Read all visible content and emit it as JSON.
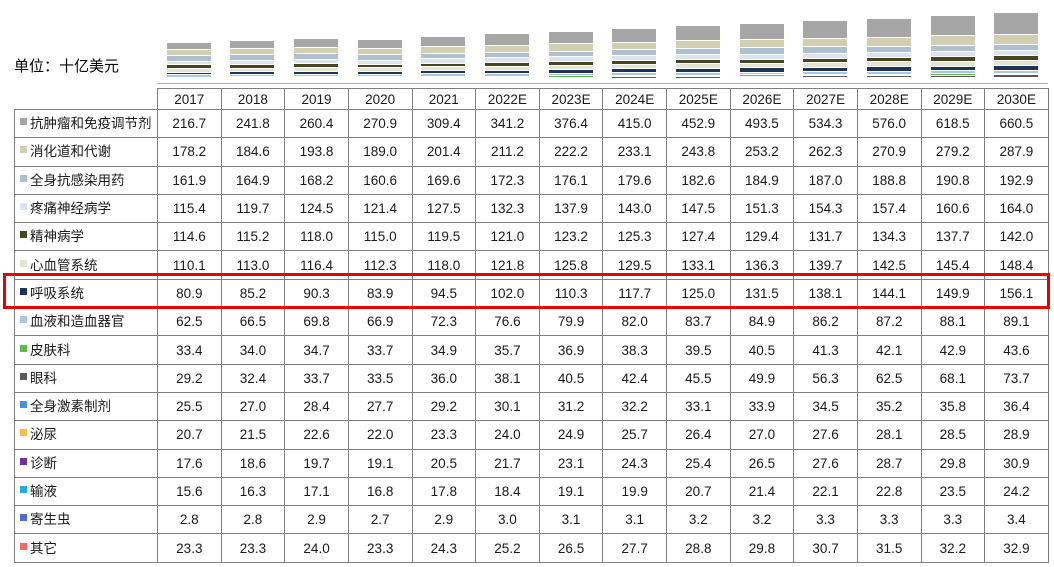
{
  "unit_label": "单位：十亿美元",
  "highlight": {
    "series": "呼吸系统",
    "border_color": "#e60000"
  },
  "chart_data": {
    "type": "bar",
    "stacked": true,
    "orientation": "vertical",
    "title": "",
    "unit": "十亿美元",
    "legend_position": "table-row-labels",
    "grid": false,
    "categories": [
      "2017",
      "2018",
      "2019",
      "2020",
      "2021",
      "2022E",
      "2023E",
      "2024E",
      "2025E",
      "2026E",
      "2027E",
      "2028E",
      "2029E",
      "2030E"
    ],
    "highlighted_series_index": 6,
    "series": [
      {
        "name": "抗肿瘤和免疫调节剂",
        "color": "#a6a6a6",
        "values": [
          216.7,
          241.8,
          260.4,
          270.9,
          309.4,
          341.2,
          376.4,
          415.0,
          452.9,
          493.5,
          534.3,
          576.0,
          618.5,
          660.5
        ]
      },
      {
        "name": "消化道和代谢",
        "color": "#d2cfb0",
        "values": [
          178.2,
          184.6,
          193.8,
          189.0,
          201.4,
          211.2,
          222.2,
          233.1,
          243.8,
          253.2,
          262.3,
          270.9,
          279.2,
          287.9
        ]
      },
      {
        "name": "全身抗感染用药",
        "color": "#aebfd0",
        "values": [
          161.9,
          164.9,
          168.2,
          160.6,
          169.6,
          172.3,
          176.1,
          179.6,
          182.6,
          184.9,
          187.0,
          188.8,
          190.8,
          192.9
        ]
      },
      {
        "name": "疼痛神经病学",
        "color": "#dae3ee",
        "values": [
          115.4,
          119.7,
          124.5,
          121.4,
          127.5,
          132.3,
          137.9,
          143.0,
          147.5,
          151.3,
          154.3,
          157.4,
          160.6,
          164.0
        ]
      },
      {
        "name": "精神病学",
        "color": "#45461f",
        "values": [
          114.6,
          115.2,
          118.0,
          115.0,
          119.5,
          121.0,
          123.2,
          125.3,
          127.4,
          129.4,
          131.7,
          134.3,
          137.7,
          142.0
        ]
      },
      {
        "name": "心血管系统",
        "color": "#e4e4d2",
        "values": [
          110.1,
          113.0,
          116.4,
          112.3,
          118.0,
          121.8,
          125.8,
          129.5,
          133.1,
          136.3,
          139.7,
          142.5,
          145.4,
          148.4
        ]
      },
      {
        "name": "呼吸系统",
        "color": "#1f3357",
        "values": [
          80.9,
          85.2,
          90.3,
          83.9,
          94.5,
          102.0,
          110.3,
          117.7,
          125.0,
          131.5,
          138.1,
          144.1,
          149.9,
          156.1
        ]
      },
      {
        "name": "血液和造血器官",
        "color": "#a9c6e2",
        "values": [
          62.5,
          66.5,
          69.8,
          66.9,
          72.3,
          76.6,
          79.9,
          82.0,
          83.7,
          84.9,
          86.2,
          87.2,
          88.1,
          89.1
        ]
      },
      {
        "name": "皮肤科",
        "color": "#63b84a",
        "values": [
          33.4,
          34.0,
          34.7,
          33.7,
          34.9,
          35.7,
          36.9,
          38.3,
          39.5,
          40.5,
          41.3,
          42.1,
          42.9,
          43.6
        ]
      },
      {
        "name": "眼科",
        "color": "#595959",
        "values": [
          29.2,
          32.4,
          33.7,
          33.5,
          36.0,
          38.1,
          40.5,
          42.4,
          45.5,
          49.9,
          56.3,
          62.5,
          68.1,
          73.7
        ]
      },
      {
        "name": "全身激素制剂",
        "color": "#4a90d9",
        "values": [
          25.5,
          27.0,
          28.4,
          27.7,
          29.2,
          30.1,
          31.2,
          32.2,
          33.1,
          33.9,
          34.5,
          35.2,
          35.8,
          36.4
        ]
      },
      {
        "name": "泌尿",
        "color": "#eec33f",
        "values": [
          20.7,
          21.5,
          22.6,
          22.0,
          23.3,
          24.0,
          24.9,
          25.7,
          26.4,
          27.0,
          27.6,
          28.1,
          28.5,
          28.9
        ]
      },
      {
        "name": "诊断",
        "color": "#7030a0",
        "values": [
          17.6,
          18.6,
          19.7,
          19.1,
          20.5,
          21.7,
          23.1,
          24.3,
          25.4,
          26.5,
          27.6,
          28.7,
          29.8,
          30.9
        ]
      },
      {
        "name": "输液",
        "color": "#29a9e1",
        "values": [
          15.6,
          16.3,
          17.1,
          16.8,
          17.8,
          18.4,
          19.1,
          19.9,
          20.7,
          21.4,
          22.1,
          22.8,
          23.5,
          24.2
        ]
      },
      {
        "name": "寄生虫",
        "color": "#5569d5",
        "values": [
          2.8,
          2.8,
          2.9,
          2.7,
          2.9,
          3.0,
          3.1,
          3.1,
          3.2,
          3.2,
          3.3,
          3.3,
          3.3,
          3.4
        ]
      },
      {
        "name": "其它",
        "color": "#ec6b6b",
        "values": [
          23.3,
          23.3,
          24.0,
          23.3,
          24.3,
          25.2,
          26.5,
          27.7,
          28.8,
          29.8,
          30.7,
          31.5,
          32.2,
          32.9
        ]
      }
    ]
  }
}
